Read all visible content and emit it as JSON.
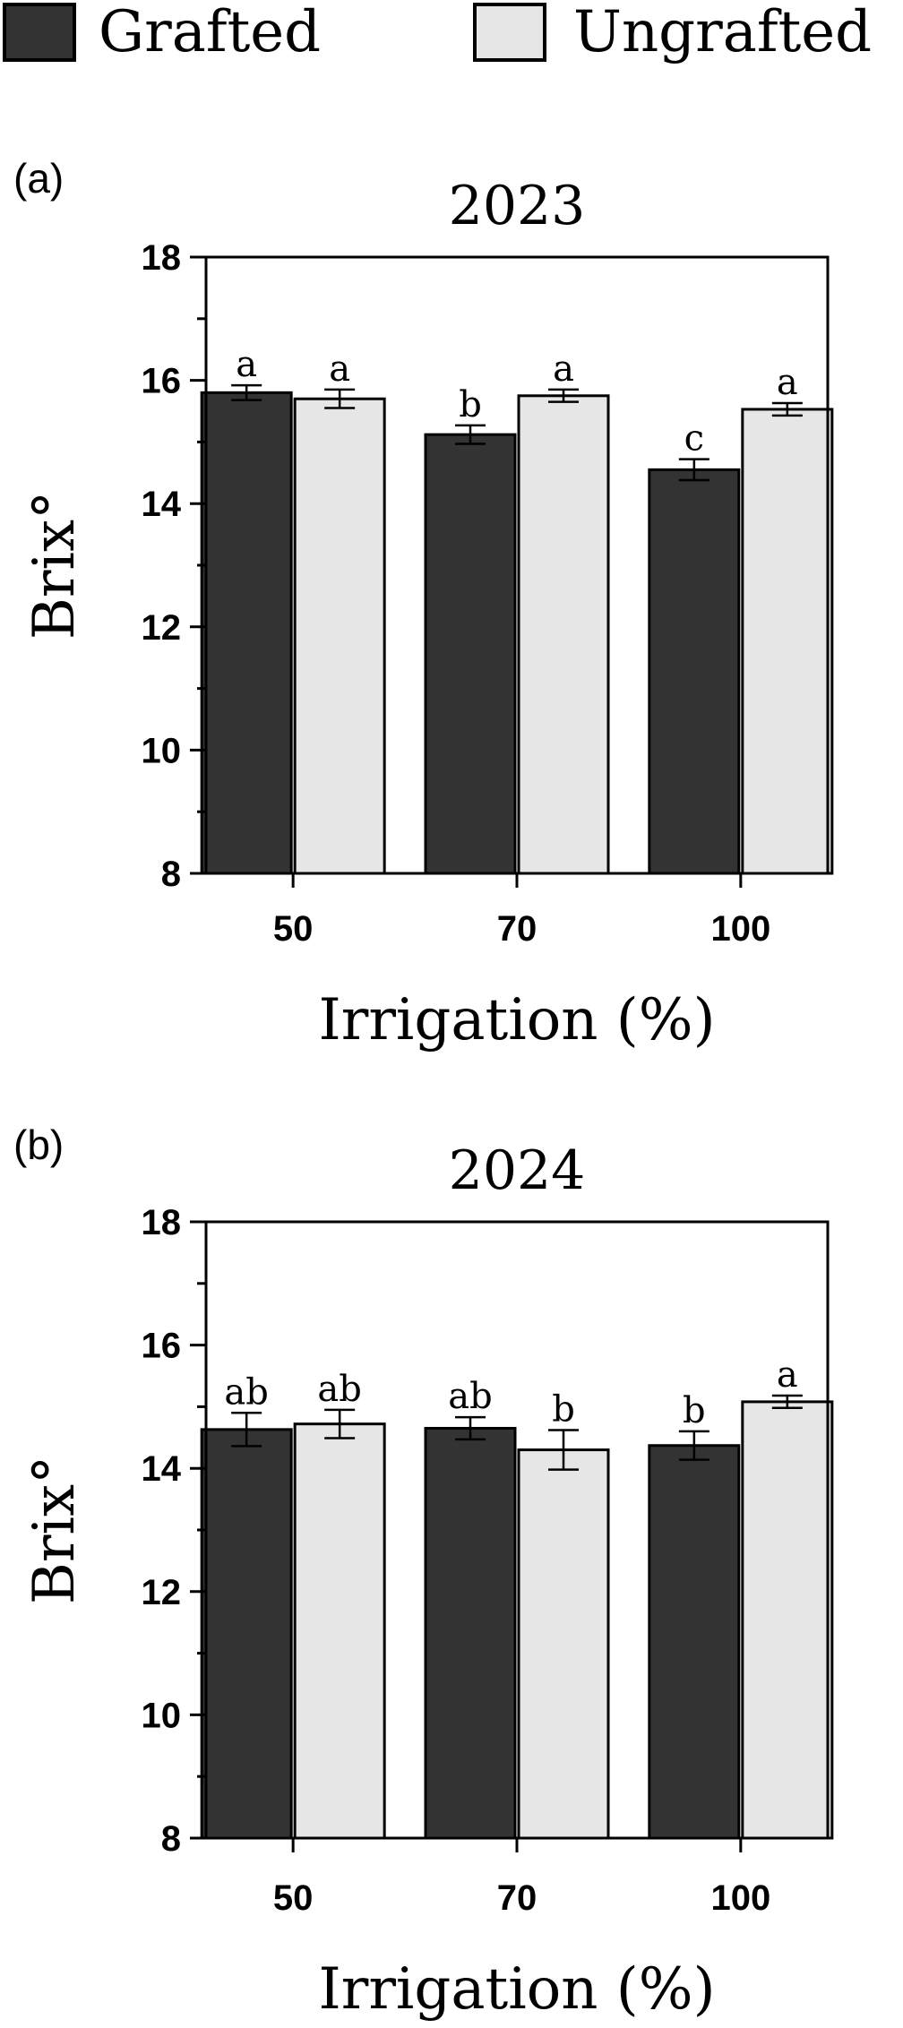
{
  "legend": {
    "items": [
      {
        "label": "Grafted",
        "color": "#333333"
      },
      {
        "label": "Ungrafted",
        "color": "#e6e6e6"
      }
    ]
  },
  "colors": {
    "grafted": "#333333",
    "ungrafted": "#e6e6e6",
    "axis": "#000000"
  },
  "chart_data": [
    {
      "type": "bar",
      "panel_label": "(a)",
      "title": "2023",
      "xlabel": "Irrigation (%)",
      "ylabel": "Brix°",
      "ylim": [
        8,
        18
      ],
      "yticks": [
        "8",
        "10",
        "12",
        "14",
        "16",
        "18"
      ],
      "minor_ticks_every": 1,
      "categories": [
        "50",
        "70",
        "100"
      ],
      "series": [
        {
          "name": "Grafted",
          "values": [
            15.8,
            15.12,
            14.55
          ],
          "errors": [
            0.12,
            0.15,
            0.17
          ],
          "letters": [
            "a",
            "b",
            "c"
          ]
        },
        {
          "name": "Ungrafted",
          "values": [
            15.7,
            15.75,
            15.53
          ],
          "errors": [
            0.15,
            0.1,
            0.1
          ],
          "letters": [
            "a",
            "a",
            "a"
          ]
        }
      ]
    },
    {
      "type": "bar",
      "panel_label": "(b)",
      "title": "2024",
      "xlabel": "Irrigation (%)",
      "ylabel": "Brix°",
      "ylim": [
        8,
        18
      ],
      "yticks": [
        "8",
        "10",
        "12",
        "14",
        "16",
        "18"
      ],
      "minor_ticks_every": 1,
      "categories": [
        "50",
        "70",
        "100"
      ],
      "series": [
        {
          "name": "Grafted",
          "values": [
            14.63,
            14.65,
            14.37
          ],
          "errors": [
            0.27,
            0.18,
            0.23
          ],
          "letters": [
            "ab",
            "ab",
            "b"
          ]
        },
        {
          "name": "Ungrafted",
          "values": [
            14.72,
            14.3,
            15.08
          ],
          "errors": [
            0.23,
            0.32,
            0.1
          ],
          "letters": [
            "ab",
            "b",
            "a"
          ]
        }
      ]
    }
  ]
}
